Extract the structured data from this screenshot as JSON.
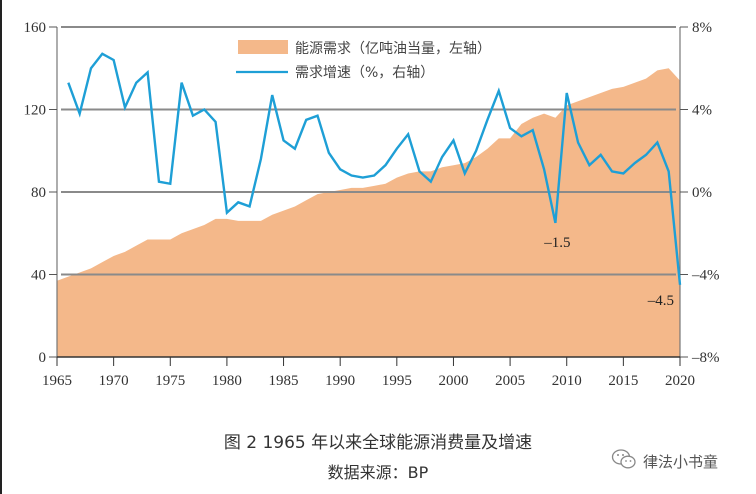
{
  "chart_data": {
    "type": "area+line",
    "title": "",
    "xlabel": "",
    "ylabel_left": "",
    "ylabel_right": "",
    "x_range": [
      1965,
      2020
    ],
    "x_ticks": [
      "1965",
      "1970",
      "1975",
      "1980",
      "1985",
      "1990",
      "1995",
      "2000",
      "2005",
      "2010",
      "2015",
      "2020"
    ],
    "y_left_range": [
      0,
      160
    ],
    "y_left_ticks": [
      "0",
      "40",
      "80",
      "120",
      "160"
    ],
    "y_right_range": [
      -8,
      8
    ],
    "y_right_ticks": [
      "-8%",
      "-4%",
      "0%",
      "4%",
      "8%"
    ],
    "grid": true,
    "legend_position": "top-center",
    "series": [
      {
        "name": "能源需求（亿吨油当量，左轴）",
        "type": "area",
        "axis": "left",
        "color": "#F4B88A",
        "x": [
          1965,
          1966,
          1967,
          1968,
          1969,
          1970,
          1971,
          1972,
          1973,
          1974,
          1975,
          1976,
          1977,
          1978,
          1979,
          1980,
          1981,
          1982,
          1983,
          1984,
          1985,
          1986,
          1987,
          1988,
          1989,
          1990,
          1991,
          1992,
          1993,
          1994,
          1995,
          1996,
          1997,
          1998,
          1999,
          2000,
          2001,
          2002,
          2003,
          2004,
          2005,
          2006,
          2007,
          2008,
          2009,
          2010,
          2011,
          2012,
          2013,
          2014,
          2015,
          2016,
          2017,
          2018,
          2019,
          2020
        ],
        "values": [
          37,
          39,
          41,
          43,
          46,
          49,
          51,
          54,
          57,
          57,
          57,
          60,
          62,
          64,
          67,
          67,
          66,
          66,
          66,
          69,
          71,
          73,
          76,
          79,
          80,
          81,
          82,
          82,
          83,
          84,
          87,
          89,
          90,
          90,
          92,
          93,
          94,
          97,
          101,
          106,
          106,
          113,
          116,
          118,
          116,
          122,
          124,
          126,
          128,
          130,
          131,
          133,
          135,
          139,
          140,
          134
        ]
      },
      {
        "name": "需求增速（%，右轴）",
        "type": "line",
        "axis": "right",
        "color": "#1E9FD6",
        "x": [
          1966,
          1967,
          1968,
          1969,
          1970,
          1971,
          1972,
          1973,
          1974,
          1975,
          1976,
          1977,
          1978,
          1979,
          1980,
          1981,
          1982,
          1983,
          1984,
          1985,
          1986,
          1987,
          1988,
          1989,
          1990,
          1991,
          1992,
          1993,
          1994,
          1995,
          1996,
          1997,
          1998,
          1999,
          2000,
          2001,
          2002,
          2003,
          2004,
          2005,
          2006,
          2007,
          2008,
          2009,
          2010,
          2011,
          2012,
          2013,
          2014,
          2015,
          2016,
          2017,
          2018,
          2019,
          2020
        ],
        "values": [
          5.3,
          3.8,
          6.0,
          6.7,
          6.4,
          4.1,
          5.3,
          5.8,
          0.5,
          0.4,
          5.3,
          3.7,
          4.0,
          3.4,
          -1.0,
          -0.5,
          -0.7,
          1.6,
          4.7,
          2.5,
          2.1,
          3.5,
          3.7,
          1.9,
          1.1,
          0.8,
          0.7,
          0.8,
          1.3,
          2.1,
          2.8,
          1.0,
          0.5,
          1.7,
          2.5,
          0.9,
          2.0,
          3.5,
          4.9,
          3.1,
          2.7,
          3.0,
          1.1,
          -1.5,
          4.8,
          2.4,
          1.3,
          1.8,
          1.0,
          0.9,
          1.4,
          1.8,
          2.4,
          1.0,
          -4.5
        ]
      }
    ],
    "annotations": [
      {
        "x": 2009,
        "text": "-1.5"
      },
      {
        "x": 2020,
        "text": "-4.5"
      }
    ]
  },
  "legend": {
    "area_label": "能源需求（亿吨油当量，左轴）",
    "line_label": "需求增速（%，右轴）"
  },
  "caption": {
    "title": "图 2 1965 年以来全球能源消费量及增速",
    "source": "数据来源：BP"
  },
  "watermark": {
    "icon": "wechat-icon",
    "text": "律法小书童"
  }
}
